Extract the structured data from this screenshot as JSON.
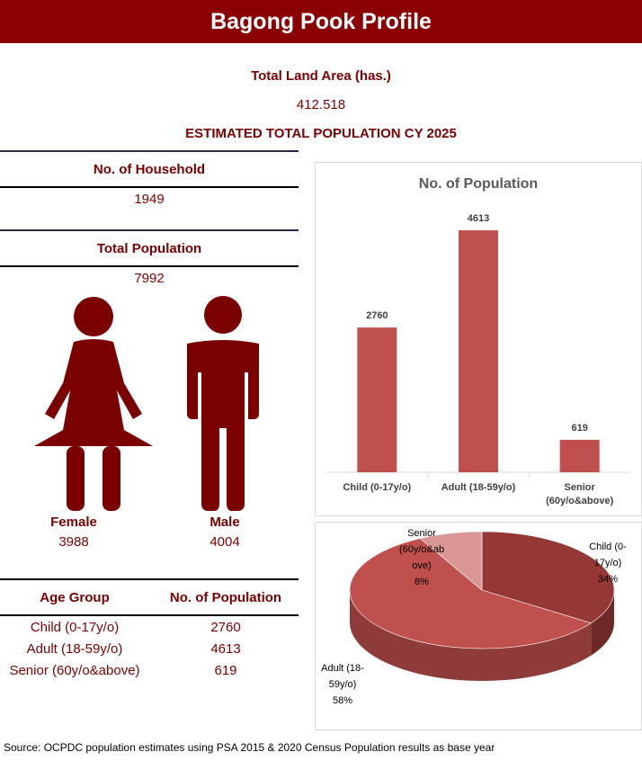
{
  "title": "Bagong Pook Profile",
  "land_area": {
    "label": "Total Land Area (has.)",
    "value": "412.518"
  },
  "estimate_heading": "ESTIMATED TOTAL POPULATION CY 2025",
  "household": {
    "label": "No. of Household",
    "value": "1949"
  },
  "total_population": {
    "label": "Total Population",
    "value": "7992"
  },
  "gender": {
    "female": {
      "label": "Female",
      "value": "3988"
    },
    "male": {
      "label": "Male",
      "value": "4004"
    }
  },
  "age_table": {
    "headers": [
      "Age Group",
      "No. of Population"
    ],
    "rows": [
      [
        "Child (0-17y/o)",
        "2760"
      ],
      [
        "Adult (18-59y/o)",
        "4613"
      ],
      [
        "Senior (60y/o&above)",
        "619"
      ]
    ]
  },
  "colors": {
    "brand": "#8b0000",
    "bar": "#c0504d",
    "pie_child": "#953735",
    "pie_adult": "#c0504d",
    "pie_senior": "#d99694"
  },
  "icons": [
    "female-figure-icon",
    "male-figure-icon"
  ],
  "chart_data": [
    {
      "type": "bar",
      "title": "No. of Population",
      "categories": [
        "Child (0-17y/o)",
        "Adult (18-59y/o)",
        "Senior (60y/o&above)"
      ],
      "category_lines": [
        [
          "Child (0-17y/o)"
        ],
        [
          "Adult (18-59y/o)"
        ],
        [
          "Senior",
          "(60y/o&above)"
        ]
      ],
      "values": [
        2760,
        4613,
        619
      ],
      "ylim": [
        0,
        4700
      ],
      "grid": false,
      "legend": "none"
    },
    {
      "type": "pie",
      "title": "",
      "categories": [
        "Child (0-17y/o)",
        "Adult (18-59y/o)",
        "Senior (60y/o&above)"
      ],
      "values": [
        2760,
        4613,
        619
      ],
      "percent_labels": [
        "34%",
        "58%",
        "8%"
      ],
      "label_lines": [
        [
          "Child (0-",
          "17y/o)",
          "34%"
        ],
        [
          "Adult (18-",
          "59y/o)",
          "58%"
        ],
        [
          "Senior",
          "(60y/o&ab",
          "ove)",
          "8%"
        ]
      ]
    }
  ],
  "source": "Source: OCPDC population estimates using PSA 2015 & 2020 Census Population results as base year"
}
